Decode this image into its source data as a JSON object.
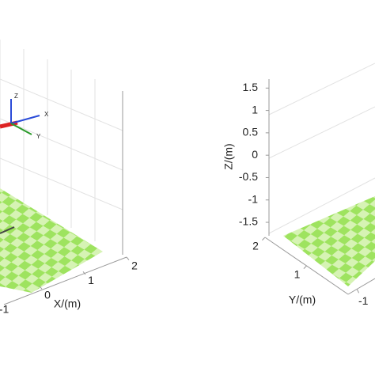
{
  "chart_data": [
    {
      "type": "3d",
      "xlabel": "X/(m)",
      "xlim": [
        -1,
        2
      ],
      "xticks": [
        -1,
        0,
        1,
        2
      ],
      "frame_labels": [
        "Z",
        "X",
        "Y"
      ]
    },
    {
      "type": "3d",
      "zlabel": "Z/(m)",
      "zlim": [
        -1.8,
        1.7
      ],
      "zticks": [
        -1.5,
        -1,
        -0.5,
        0,
        0.5,
        1,
        1.5
      ],
      "ylabel": "Y/(m)",
      "ylim": [
        0,
        2
      ],
      "yticks": [
        1,
        2
      ],
      "xlim": [
        -1.2,
        2
      ],
      "xticks": [
        -1
      ]
    }
  ]
}
